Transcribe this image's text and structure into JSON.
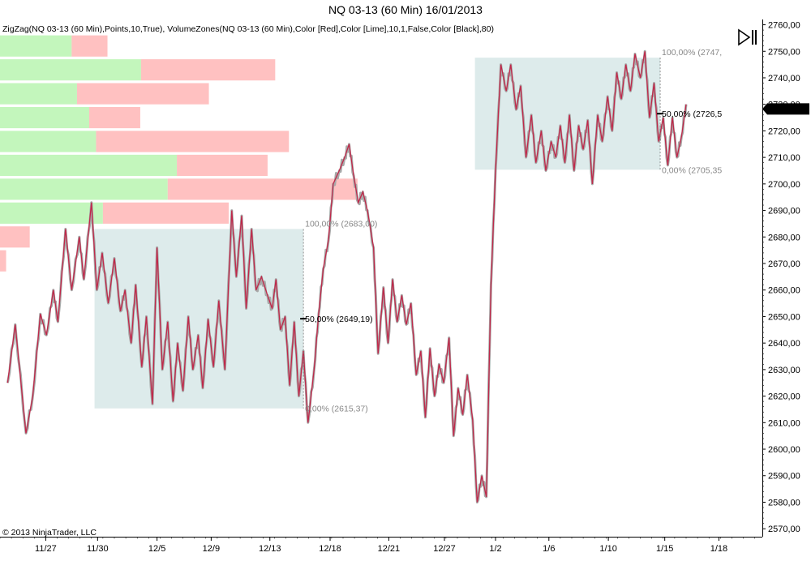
{
  "title": "NQ 03-13 (60 Min)  16/01/2013",
  "indicators": "ZigZag(NQ 03-13 (60 Min),Points,10,True), VolumeZones(NQ 03-13 (60 Min),Color [Red],Color [Lime],10,1,False,Color [Black],80)",
  "copyright": "© 2013 NinjaTrader, LLC",
  "play_button_icon": "play-pause-icon",
  "last_price_label": "2728,25",
  "colors": {
    "zigzag": "#c0284a",
    "price": "#a8a8a8",
    "volume_down": "#ffb6b6",
    "volume_up": "#b8f5b0",
    "range_box": "#cfe3e3",
    "last_price_bg": "#000000",
    "last_price_text": "#ffffff"
  },
  "chart_data": {
    "type": "line",
    "title": "NQ 03-13 (60 Min)  16/01/2013",
    "x_ticks": [
      "11/27",
      "11/30",
      "12/5",
      "12/9",
      "12/13",
      "12/18",
      "12/21",
      "12/27",
      "1/2",
      "1/6",
      "1/10",
      "1/15",
      "1/18"
    ],
    "y_ticks": [
      "2570,00",
      "2580,00",
      "2590,00",
      "2600,00",
      "2610,00",
      "2620,00",
      "2630,00",
      "2640,00",
      "2650,00",
      "2660,00",
      "2670,00",
      "2680,00",
      "2690,00",
      "2700,00",
      "2710,00",
      "2720,00",
      "2730,00",
      "2740,00",
      "2750,00",
      "2760,00"
    ],
    "ylim": [
      2567,
      2762
    ],
    "xlim": [
      0,
      100
    ],
    "x_tick_positions": [
      6.0,
      12.8,
      20.6,
      27.7,
      35.4,
      43.3,
      51.0,
      58.3,
      65.0,
      72.0,
      79.8,
      87.2,
      94.3
    ],
    "last_price": 2728.25,
    "zigzag": [
      [
        1.0,
        2625
      ],
      [
        2.0,
        2647
      ],
      [
        3.4,
        2606
      ],
      [
        4.3,
        2620
      ],
      [
        5.3,
        2651
      ],
      [
        6.1,
        2643
      ],
      [
        7.0,
        2660
      ],
      [
        7.6,
        2648
      ],
      [
        8.6,
        2683
      ],
      [
        9.4,
        2660
      ],
      [
        10.4,
        2680
      ],
      [
        11.0,
        2664
      ],
      [
        12.0,
        2693
      ],
      [
        12.7,
        2660
      ],
      [
        13.4,
        2674
      ],
      [
        14.2,
        2655
      ],
      [
        15.0,
        2672
      ],
      [
        15.8,
        2652
      ],
      [
        16.4,
        2660
      ],
      [
        17.2,
        2640
      ],
      [
        17.8,
        2662
      ],
      [
        18.6,
        2631
      ],
      [
        19.2,
        2650
      ],
      [
        20.0,
        2617
      ],
      [
        20.6,
        2676
      ],
      [
        21.3,
        2630
      ],
      [
        22.0,
        2648
      ],
      [
        22.7,
        2618
      ],
      [
        23.3,
        2640
      ],
      [
        24.0,
        2622
      ],
      [
        24.7,
        2650
      ],
      [
        25.3,
        2630
      ],
      [
        26.0,
        2643
      ],
      [
        26.6,
        2623
      ],
      [
        27.3,
        2649
      ],
      [
        28.0,
        2631
      ],
      [
        28.7,
        2656
      ],
      [
        29.5,
        2630
      ],
      [
        30.4,
        2690
      ],
      [
        31.0,
        2665
      ],
      [
        31.7,
        2688
      ],
      [
        32.3,
        2653
      ],
      [
        33.0,
        2683
      ],
      [
        33.6,
        2660
      ],
      [
        34.3,
        2665
      ],
      [
        35.1,
        2658
      ],
      [
        35.7,
        2653
      ],
      [
        36.2,
        2664
      ],
      [
        36.8,
        2645
      ],
      [
        37.4,
        2650
      ],
      [
        38.0,
        2624
      ],
      [
        38.6,
        2648
      ],
      [
        39.2,
        2620
      ],
      [
        39.8,
        2637
      ],
      [
        40.4,
        2610
      ],
      [
        41.2,
        2630
      ],
      [
        41.8,
        2651
      ],
      [
        42.4,
        2668
      ],
      [
        43.1,
        2679
      ],
      [
        43.7,
        2700
      ],
      [
        44.5,
        2705
      ],
      [
        45.2,
        2710
      ],
      [
        45.8,
        2715
      ],
      [
        46.4,
        2703
      ],
      [
        47.0,
        2693
      ],
      [
        47.6,
        2697
      ],
      [
        48.2,
        2690
      ],
      [
        49.0,
        2676
      ],
      [
        49.6,
        2636
      ],
      [
        50.3,
        2661
      ],
      [
        50.9,
        2640
      ],
      [
        51.5,
        2664
      ],
      [
        52.1,
        2648
      ],
      [
        52.7,
        2658
      ],
      [
        53.3,
        2647
      ],
      [
        53.9,
        2655
      ],
      [
        54.6,
        2628
      ],
      [
        55.2,
        2637
      ],
      [
        55.8,
        2612
      ],
      [
        56.4,
        2638
      ],
      [
        57.0,
        2620
      ],
      [
        57.6,
        2632
      ],
      [
        58.2,
        2625
      ],
      [
        58.9,
        2642
      ],
      [
        59.5,
        2605
      ],
      [
        60.1,
        2623
      ],
      [
        60.7,
        2613
      ],
      [
        61.3,
        2628
      ],
      [
        62.0,
        2611
      ],
      [
        62.6,
        2580
      ],
      [
        63.2,
        2590
      ],
      [
        63.8,
        2582
      ],
      [
        64.4,
        2662
      ],
      [
        65.0,
        2705
      ],
      [
        65.7,
        2745
      ],
      [
        66.4,
        2735
      ],
      [
        67.0,
        2745
      ],
      [
        67.7,
        2728
      ],
      [
        68.3,
        2737
      ],
      [
        69.0,
        2710
      ],
      [
        69.7,
        2726
      ],
      [
        70.3,
        2708
      ],
      [
        71.0,
        2720
      ],
      [
        71.6,
        2705
      ],
      [
        72.3,
        2716
      ],
      [
        72.9,
        2710
      ],
      [
        73.5,
        2722
      ],
      [
        74.1,
        2708
      ],
      [
        74.7,
        2726
      ],
      [
        75.3,
        2705
      ],
      [
        75.9,
        2722
      ],
      [
        76.5,
        2713
      ],
      [
        77.1,
        2724
      ],
      [
        77.7,
        2700
      ],
      [
        78.4,
        2726
      ],
      [
        79.0,
        2716
      ],
      [
        79.7,
        2733
      ],
      [
        80.3,
        2720
      ],
      [
        80.9,
        2742
      ],
      [
        81.5,
        2732
      ],
      [
        82.1,
        2745
      ],
      [
        82.7,
        2735
      ],
      [
        83.3,
        2749
      ],
      [
        84.0,
        2740
      ],
      [
        84.6,
        2750
      ],
      [
        85.2,
        2725
      ],
      [
        85.8,
        2738
      ],
      [
        86.4,
        2716
      ],
      [
        87.0,
        2725
      ],
      [
        87.6,
        2707
      ],
      [
        88.2,
        2725
      ],
      [
        88.8,
        2710
      ],
      [
        89.4,
        2718
      ],
      [
        90.0,
        2730
      ]
    ],
    "volume_zones": [
      {
        "y_low": 2748,
        "y_high": 2756,
        "up_end": 9.4,
        "down_end": 14.1
      },
      {
        "y_low": 2739,
        "y_high": 2747,
        "up_end": 18.5,
        "down_end": 36.1
      },
      {
        "y_low": 2730,
        "y_high": 2738,
        "up_end": 10.1,
        "down_end": 27.4
      },
      {
        "y_low": 2721,
        "y_high": 2729,
        "up_end": 11.7,
        "down_end": 18.4
      },
      {
        "y_low": 2712,
        "y_high": 2720,
        "up_end": 12.6,
        "down_end": 37.9
      },
      {
        "y_low": 2703,
        "y_high": 2711,
        "up_end": 23.2,
        "down_end": 35.1
      },
      {
        "y_low": 2694,
        "y_high": 2702,
        "up_end": 22.0,
        "down_end": 46.9
      },
      {
        "y_low": 2685,
        "y_high": 2693,
        "up_end": 13.5,
        "down_end": 30.0
      },
      {
        "y_low": 2676,
        "y_high": 2684,
        "up_end": 0,
        "down_end": 3.9
      },
      {
        "y_low": 2667,
        "y_high": 2675,
        "up_end": 0,
        "down_end": 0.8
      }
    ],
    "range_boxes": [
      {
        "x_start": 12.4,
        "x_end": 39.8,
        "y_low": 2615.37,
        "y_high": 2683.0,
        "label_high": "100,00% (2683,00)",
        "label_mid": "50,00% (2649,19)",
        "label_low": "0,00% (2615,37)"
      },
      {
        "x_start": 62.3,
        "x_end": 86.6,
        "y_low": 2705.35,
        "y_high": 2747.6,
        "label_high": "100,00% (2747,",
        "label_mid": "50,00% (2726,5",
        "label_low": "0,00% (2705,35"
      }
    ],
    "grid": false,
    "legend": "none"
  }
}
